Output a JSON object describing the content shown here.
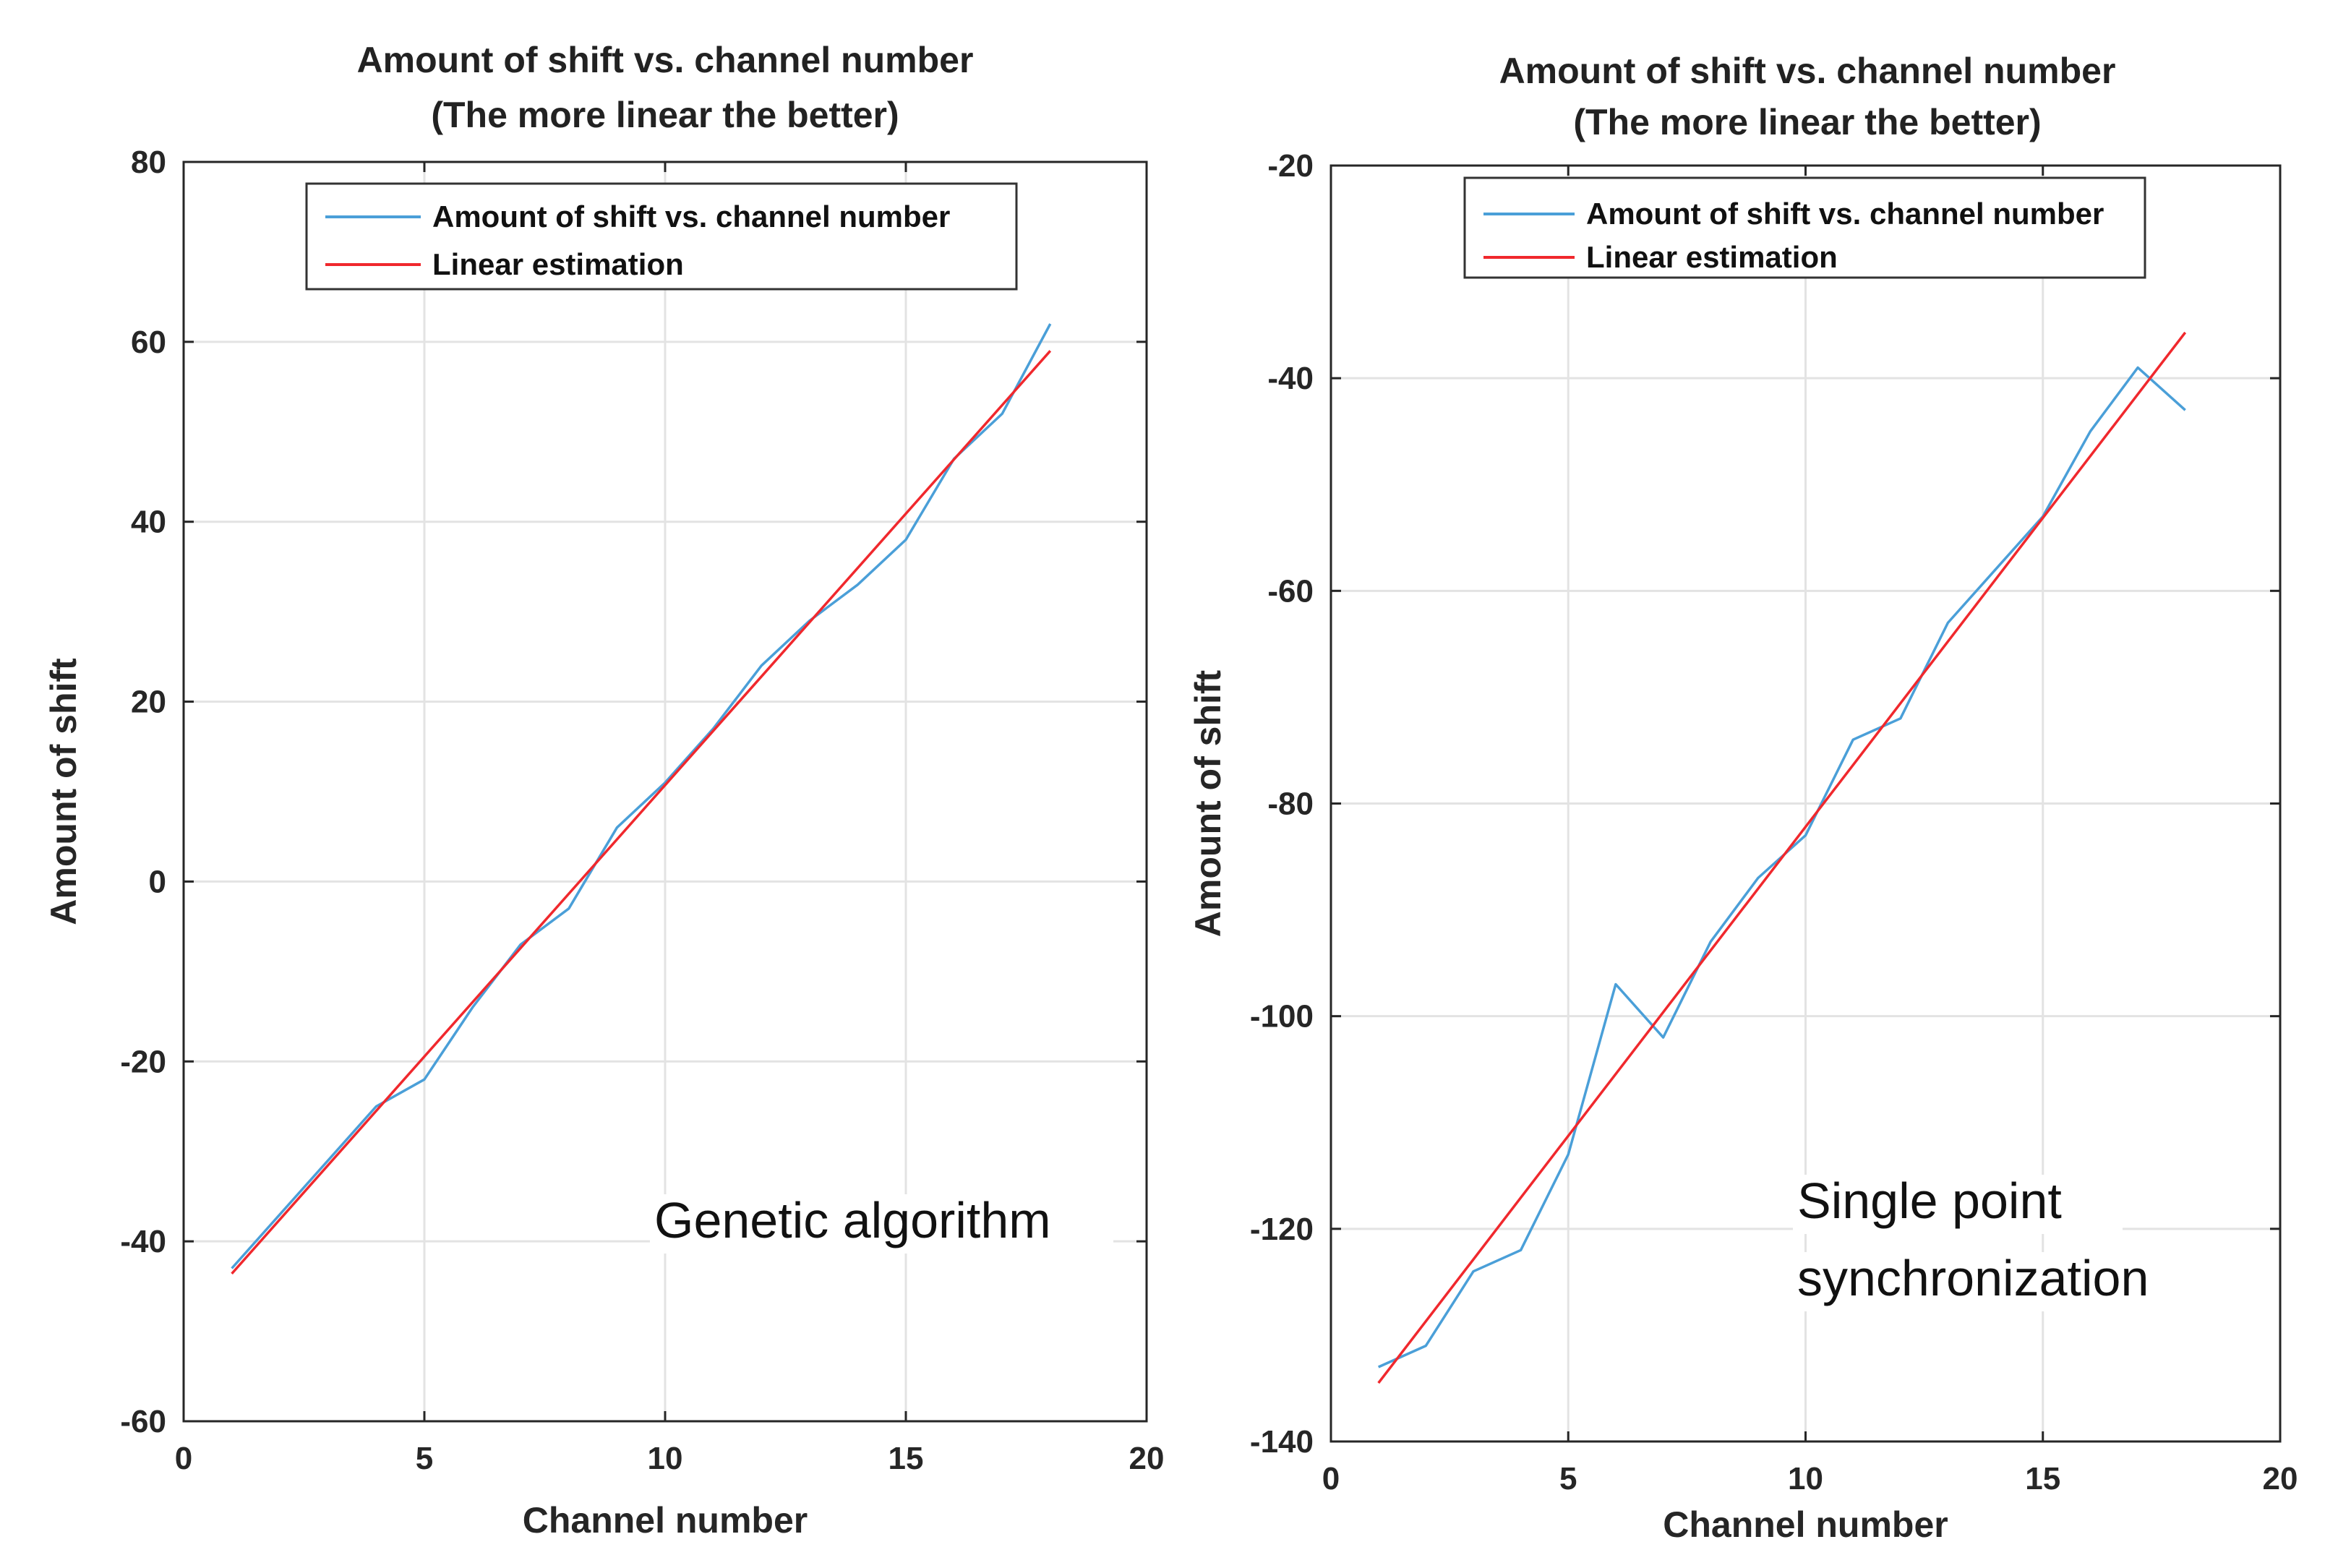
{
  "chart_data": [
    {
      "type": "line",
      "title": [
        "Amount of shift vs. channel number",
        "(The more linear the better)"
      ],
      "xlabel": "Channel number",
      "ylabel": "Amount of shift",
      "xlim": [
        0,
        20
      ],
      "ylim": [
        -60,
        80
      ],
      "xticks": [
        0,
        5,
        10,
        15,
        20
      ],
      "yticks": [
        -60,
        -40,
        -20,
        0,
        20,
        40,
        60,
        80
      ],
      "grid": true,
      "legend_position": "top",
      "annotation": "Genetic algorithm",
      "series": [
        {
          "name": "Amount of shift vs. channel number",
          "color": "#4a9fd8",
          "x": [
            1,
            2,
            3,
            4,
            5,
            6,
            7,
            8,
            9,
            10,
            11,
            12,
            13,
            14,
            15,
            16,
            17,
            18
          ],
          "y": [
            -43,
            -37,
            -31,
            -25,
            -22,
            -14,
            -7,
            -3,
            6,
            11,
            17,
            24,
            29,
            33,
            38,
            47,
            52,
            62
          ]
        },
        {
          "name": "Linear estimation",
          "color": "#f0282d",
          "x": [
            1,
            18
          ],
          "y": [
            -43.6,
            59
          ]
        }
      ]
    },
    {
      "type": "line",
      "title": [
        "Amount of shift vs. channel number",
        "(The more linear the better)"
      ],
      "xlabel": "Channel number",
      "ylabel": "Amount of shift",
      "xlim": [
        0,
        20
      ],
      "ylim": [
        -140,
        -20
      ],
      "xticks": [
        0,
        5,
        10,
        15,
        20
      ],
      "yticks": [
        -140,
        -120,
        -100,
        -80,
        -60,
        -40,
        -20
      ],
      "grid": true,
      "legend_position": "top",
      "annotation": [
        "Single point",
        "synchronization"
      ],
      "series": [
        {
          "name": "Amount of shift vs. channel number",
          "color": "#4a9fd8",
          "x": [
            1,
            2,
            3,
            4,
            5,
            6,
            7,
            8,
            9,
            10,
            11,
            12,
            13,
            14,
            15,
            16,
            17,
            18
          ],
          "y": [
            -133,
            -131,
            -124,
            -122,
            -113,
            -97,
            -102,
            -93,
            -87,
            -83,
            -74,
            -72,
            -63,
            -58,
            -53,
            -45,
            -39,
            -43
          ]
        },
        {
          "name": "Linear estimation",
          "color": "#f0282d",
          "x": [
            1,
            18
          ],
          "y": [
            -134.5,
            -35.7
          ]
        }
      ]
    }
  ]
}
